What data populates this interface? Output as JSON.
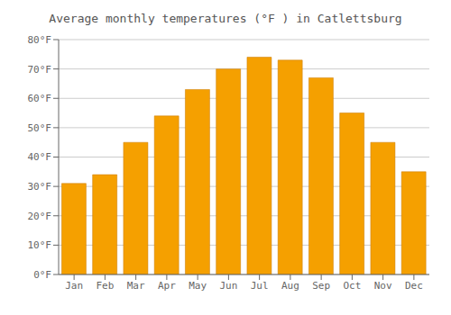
{
  "chart_data": {
    "type": "bar",
    "title": "Average monthly temperatures (°F ) in Catlettsburg",
    "categories": [
      "Jan",
      "Feb",
      "Mar",
      "Apr",
      "May",
      "Jun",
      "Jul",
      "Aug",
      "Sep",
      "Oct",
      "Nov",
      "Dec"
    ],
    "values": [
      31,
      34,
      45,
      54,
      63,
      70,
      74,
      73,
      67,
      55,
      45,
      35
    ],
    "color": "#F5A000",
    "ylim": [
      0,
      80
    ],
    "yticks": [
      {
        "value": 0,
        "label": "0°F"
      },
      {
        "value": 10,
        "label": "10°F"
      },
      {
        "value": 20,
        "label": "20°F"
      },
      {
        "value": 30,
        "label": "30°F"
      },
      {
        "value": 40,
        "label": "40°F"
      },
      {
        "value": 50,
        "label": "50°F"
      },
      {
        "value": 60,
        "label": "60°F"
      },
      {
        "value": 70,
        "label": "70°F"
      },
      {
        "value": 80,
        "label": "80°F"
      }
    ],
    "grid": true
  }
}
